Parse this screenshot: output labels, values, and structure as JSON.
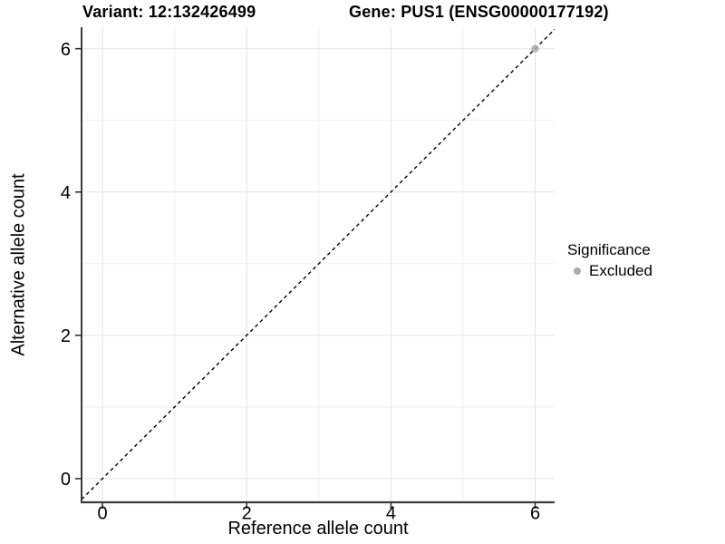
{
  "chart_data": {
    "type": "scatter",
    "title_parts": [
      "Variant: 12:132426499",
      "Gene: PUS1 (ENSG00000177192)"
    ],
    "xlabel": "Reference allele count",
    "ylabel": "Alternative allele count",
    "xlim": [
      -0.29,
      6.27
    ],
    "ylim": [
      -0.33,
      6.3
    ],
    "x_ticks": [
      0,
      2,
      4,
      6
    ],
    "y_ticks": [
      0,
      2,
      4,
      6
    ],
    "x_minor_ticks": [
      1,
      3,
      5
    ],
    "y_minor_ticks": [
      1,
      3,
      5
    ],
    "grid": true,
    "identity_line": {
      "style": "dashed",
      "color": "#000000",
      "slope": 1,
      "intercept": 0
    },
    "series": [
      {
        "name": "Excluded",
        "color": "#ababab",
        "points": [
          {
            "x": 6,
            "y": 6
          }
        ]
      }
    ],
    "legend": {
      "title": "Significance",
      "position": "right",
      "entries": [
        {
          "label": "Excluded",
          "color": "#ababab",
          "marker": "circle"
        }
      ]
    },
    "colors": {
      "background": "#ffffff",
      "grid_major": "#e3e3e3",
      "grid_minor": "#f1f1f1",
      "axis_line": "#3c3c3c",
      "tick_mark": "#333333",
      "text": "#000000"
    }
  }
}
